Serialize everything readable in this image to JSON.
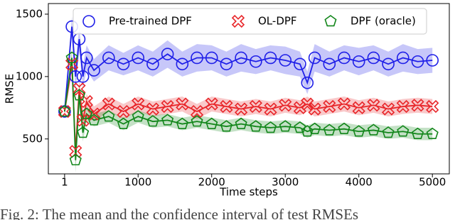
{
  "chart_data": {
    "type": "line",
    "xlabel": "Time steps",
    "ylabel": "RMSE",
    "x": [
      1,
      100,
      150,
      200,
      250,
      300,
      400,
      600,
      800,
      1000,
      1200,
      1400,
      1600,
      1800,
      2000,
      2200,
      2400,
      2600,
      2800,
      3000,
      3200,
      3300,
      3400,
      3600,
      3800,
      4000,
      4200,
      4400,
      4600,
      4800,
      5000
    ],
    "series": [
      {
        "name": "Pre-trained DPF",
        "color": "#1f1fe8",
        "marker": "circle",
        "values": [
          720,
          1400,
          1000,
          1300,
          1000,
          1150,
          1050,
          1150,
          1100,
          1150,
          1100,
          1180,
          1100,
          1150,
          1150,
          1100,
          1150,
          1120,
          1150,
          1130,
          1100,
          950,
          1150,
          1100,
          1150,
          1120,
          1150,
          1100,
          1150,
          1120,
          1130
        ],
        "ci": [
          30,
          80,
          120,
          100,
          90,
          100,
          90,
          100,
          90,
          100,
          100,
          110,
          100,
          110,
          100,
          100,
          110,
          100,
          100,
          110,
          100,
          90,
          110,
          100,
          100,
          110,
          100,
          100,
          110,
          100,
          100
        ]
      },
      {
        "name": "OL-DPF",
        "color": "#e8262a",
        "marker": "x",
        "values": [
          720,
          1100,
          400,
          900,
          650,
          800,
          700,
          780,
          720,
          780,
          740,
          760,
          780,
          720,
          780,
          760,
          740,
          760,
          740,
          770,
          750,
          780,
          740,
          760,
          780,
          750,
          770,
          740,
          760,
          770,
          760
        ],
        "ci": [
          30,
          80,
          100,
          90,
          70,
          60,
          60,
          60,
          60,
          60,
          60,
          60,
          60,
          60,
          60,
          60,
          60,
          60,
          60,
          60,
          60,
          60,
          60,
          60,
          60,
          60,
          60,
          60,
          60,
          60,
          60
        ]
      },
      {
        "name": "DPF (oracle)",
        "color": "#12861a",
        "marker": "pentagon",
        "values": [
          720,
          1150,
          330,
          850,
          550,
          700,
          650,
          680,
          620,
          680,
          640,
          650,
          620,
          640,
          620,
          600,
          620,
          600,
          590,
          600,
          590,
          560,
          580,
          570,
          580,
          560,
          570,
          550,
          560,
          540,
          540
        ],
        "ci": [
          30,
          80,
          100,
          90,
          70,
          60,
          50,
          50,
          50,
          50,
          50,
          50,
          50,
          50,
          50,
          50,
          50,
          50,
          50,
          50,
          50,
          50,
          50,
          50,
          50,
          50,
          50,
          50,
          50,
          50,
          50
        ]
      }
    ],
    "xlim": [
      -220,
      5230
    ],
    "ylim": [
      220,
      1585
    ],
    "xticks": [
      1,
      1000,
      2000,
      3000,
      4000,
      5000
    ],
    "yticks": [
      500,
      1000,
      1500
    ],
    "legend": "upper center"
  },
  "caption": "Fig. 2: The mean and the confidence interval of test RMSEs"
}
